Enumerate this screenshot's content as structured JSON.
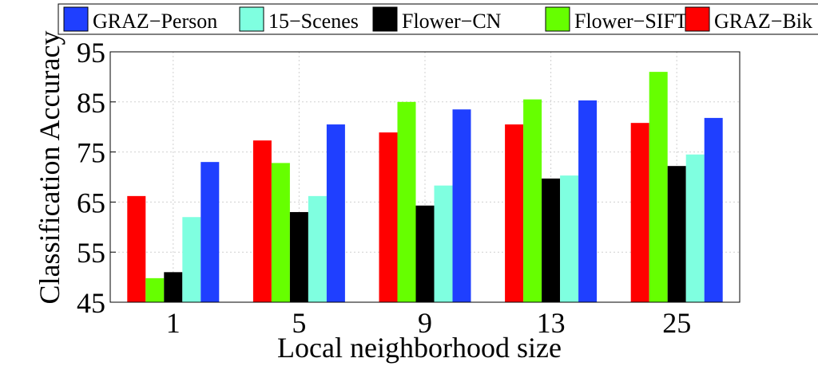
{
  "chart_data": {
    "type": "bar",
    "title": "",
    "xlabel": "Local neighborhood size",
    "ylabel": "Classification Accuracy",
    "categories": [
      "1",
      "5",
      "9",
      "13",
      "25"
    ],
    "ylim": [
      45,
      95
    ],
    "yticks": [
      "45",
      "55",
      "65",
      "75",
      "85",
      "95"
    ],
    "grid": true,
    "legend_position": "top",
    "series_draw_order": [
      "GRAZ-Bike",
      "Flower-SIFT",
      "Flower-CN",
      "15-Scenes",
      "GRAZ-Person"
    ],
    "series": [
      {
        "name": "GRAZ−Person",
        "key": "GRAZ-Person",
        "color": "#1f3fff",
        "values": [
          73.0,
          80.5,
          83.5,
          85.3,
          81.8
        ]
      },
      {
        "name": "15−Scenes",
        "key": "15-Scenes",
        "color": "#7fffe0",
        "values": [
          62.0,
          66.2,
          68.3,
          70.3,
          74.5
        ]
      },
      {
        "name": "Flower−CN",
        "key": "Flower-CN",
        "color": "#000000",
        "values": [
          51.0,
          63.0,
          64.3,
          69.7,
          72.2
        ]
      },
      {
        "name": "Flower−SIFT",
        "key": "Flower-SIFT",
        "color": "#66ff00",
        "values": [
          49.8,
          72.8,
          85.0,
          85.5,
          91.0
        ]
      },
      {
        "name": "GRAZ−Bik",
        "key": "GRAZ-Bike",
        "color": "#ff0000",
        "values": [
          66.2,
          77.3,
          78.9,
          80.5,
          80.8
        ]
      }
    ]
  }
}
